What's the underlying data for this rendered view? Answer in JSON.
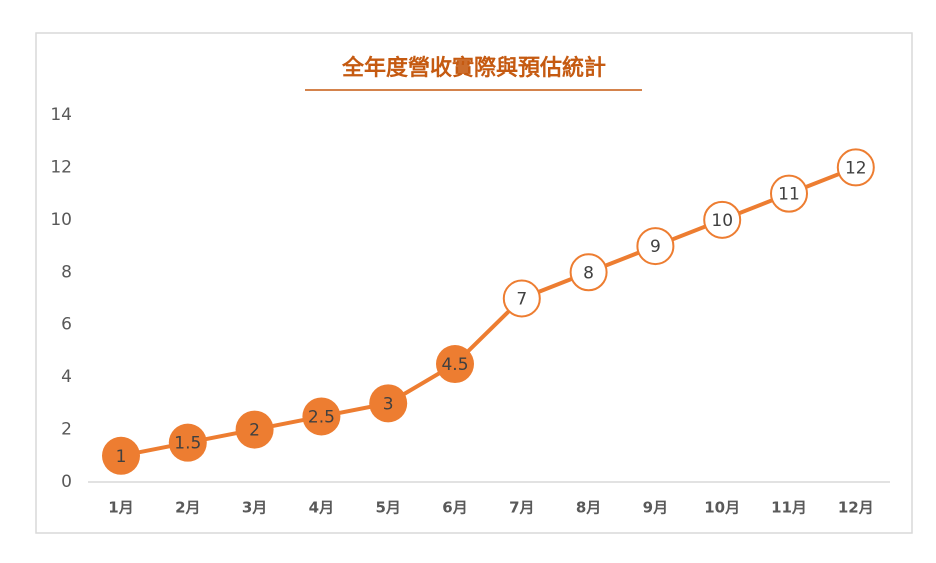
{
  "chart_data": {
    "type": "line",
    "title": "全年度營收實際與預估統計",
    "categories": [
      "1月",
      "2月",
      "3月",
      "4月",
      "5月",
      "6月",
      "7月",
      "8月",
      "9月",
      "10月",
      "11月",
      "12月"
    ],
    "values": [
      1,
      1.5,
      2,
      2.5,
      3,
      4.5,
      7,
      8,
      9,
      10,
      11,
      12
    ],
    "color": "#ed7d31",
    "marker_colors": [
      "#ed7d31",
      "#ed7d31",
      "#ed7d31",
      "#ed7d31",
      "#ed7d31",
      "#ed7d31",
      "#ffffff",
      "#ffffff",
      "#ffffff",
      "#ffffff",
      "#ffffff",
      "#ffffff"
    ],
    "ylim": [
      0,
      14
    ],
    "yticks": [
      0,
      2,
      4,
      6,
      8,
      10,
      12,
      14
    ],
    "grid": false
  }
}
